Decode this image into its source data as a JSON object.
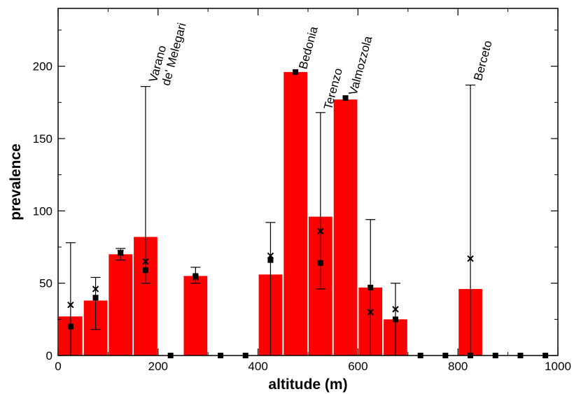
{
  "chart_data": {
    "type": "bar",
    "title": "",
    "xlabel": "altitude (m)",
    "ylabel": "prevalence",
    "xlim": [
      0,
      1000
    ],
    "ylim": [
      0,
      240
    ],
    "x_ticks": [
      0,
      200,
      400,
      600,
      800,
      1000
    ],
    "y_ticks": [
      0,
      50,
      100,
      150,
      200
    ],
    "grid": false,
    "legend": "none",
    "bin_width": 50,
    "colors": {
      "bar": "#ff0000",
      "marker": "#000000"
    },
    "bars": [
      {
        "x": 25,
        "value": 27
      },
      {
        "x": 75,
        "value": 38
      },
      {
        "x": 125,
        "value": 70
      },
      {
        "x": 175,
        "value": 82
      },
      {
        "x": 275,
        "value": 55
      },
      {
        "x": 425,
        "value": 56
      },
      {
        "x": 475,
        "value": 196
      },
      {
        "x": 525,
        "value": 96
      },
      {
        "x": 575,
        "value": 177
      },
      {
        "x": 625,
        "value": 47
      },
      {
        "x": 675,
        "value": 25
      },
      {
        "x": 825,
        "value": 46
      }
    ],
    "square_markers": [
      {
        "x": 25,
        "y": 20
      },
      {
        "x": 75,
        "y": 40
      },
      {
        "x": 125,
        "y": 71
      },
      {
        "x": 175,
        "y": 59
      },
      {
        "x": 225,
        "y": 0
      },
      {
        "x": 275,
        "y": 55
      },
      {
        "x": 325,
        "y": 0
      },
      {
        "x": 375,
        "y": 0
      },
      {
        "x": 425,
        "y": 66
      },
      {
        "x": 475,
        "y": 196
      },
      {
        "x": 525,
        "y": 64
      },
      {
        "x": 575,
        "y": 178
      },
      {
        "x": 625,
        "y": 47
      },
      {
        "x": 675,
        "y": 25
      },
      {
        "x": 725,
        "y": 0
      },
      {
        "x": 775,
        "y": 0
      },
      {
        "x": 825,
        "y": 0
      },
      {
        "x": 875,
        "y": 0
      },
      {
        "x": 925,
        "y": 0
      },
      {
        "x": 975,
        "y": 0
      }
    ],
    "cross_markers": [
      {
        "x": 25,
        "y": 35
      },
      {
        "x": 75,
        "y": 46
      },
      {
        "x": 125,
        "y": 71
      },
      {
        "x": 175,
        "y": 65
      },
      {
        "x": 275,
        "y": 54
      },
      {
        "x": 425,
        "y": 69
      },
      {
        "x": 525,
        "y": 86
      },
      {
        "x": 625,
        "y": 30
      },
      {
        "x": 675,
        "y": 32
      },
      {
        "x": 825,
        "y": 67
      }
    ],
    "error_bars": [
      {
        "x": 25,
        "low": 0,
        "high": 78
      },
      {
        "x": 75,
        "low": 18,
        "high": 54
      },
      {
        "x": 125,
        "low": 66,
        "high": 74
      },
      {
        "x": 175,
        "low": 50,
        "high": 186
      },
      {
        "x": 275,
        "low": 50,
        "high": 61
      },
      {
        "x": 425,
        "low": 0,
        "high": 92
      },
      {
        "x": 525,
        "low": 46,
        "high": 168
      },
      {
        "x": 625,
        "low": 0,
        "high": 94
      },
      {
        "x": 675,
        "low": 0,
        "high": 50
      },
      {
        "x": 825,
        "low": 0,
        "high": 187
      }
    ],
    "annotations": [
      {
        "lines": [
          "Varano",
          "de' Melegari"
        ],
        "x": 175,
        "y": 190
      },
      {
        "lines": [
          "Bedonia"
        ],
        "x": 475,
        "y": 199
      },
      {
        "lines": [
          "Terenzo"
        ],
        "x": 525,
        "y": 171
      },
      {
        "lines": [
          "Valmozzola"
        ],
        "x": 575,
        "y": 181
      },
      {
        "lines": [
          "Berceto"
        ],
        "x": 825,
        "y": 191
      }
    ]
  }
}
